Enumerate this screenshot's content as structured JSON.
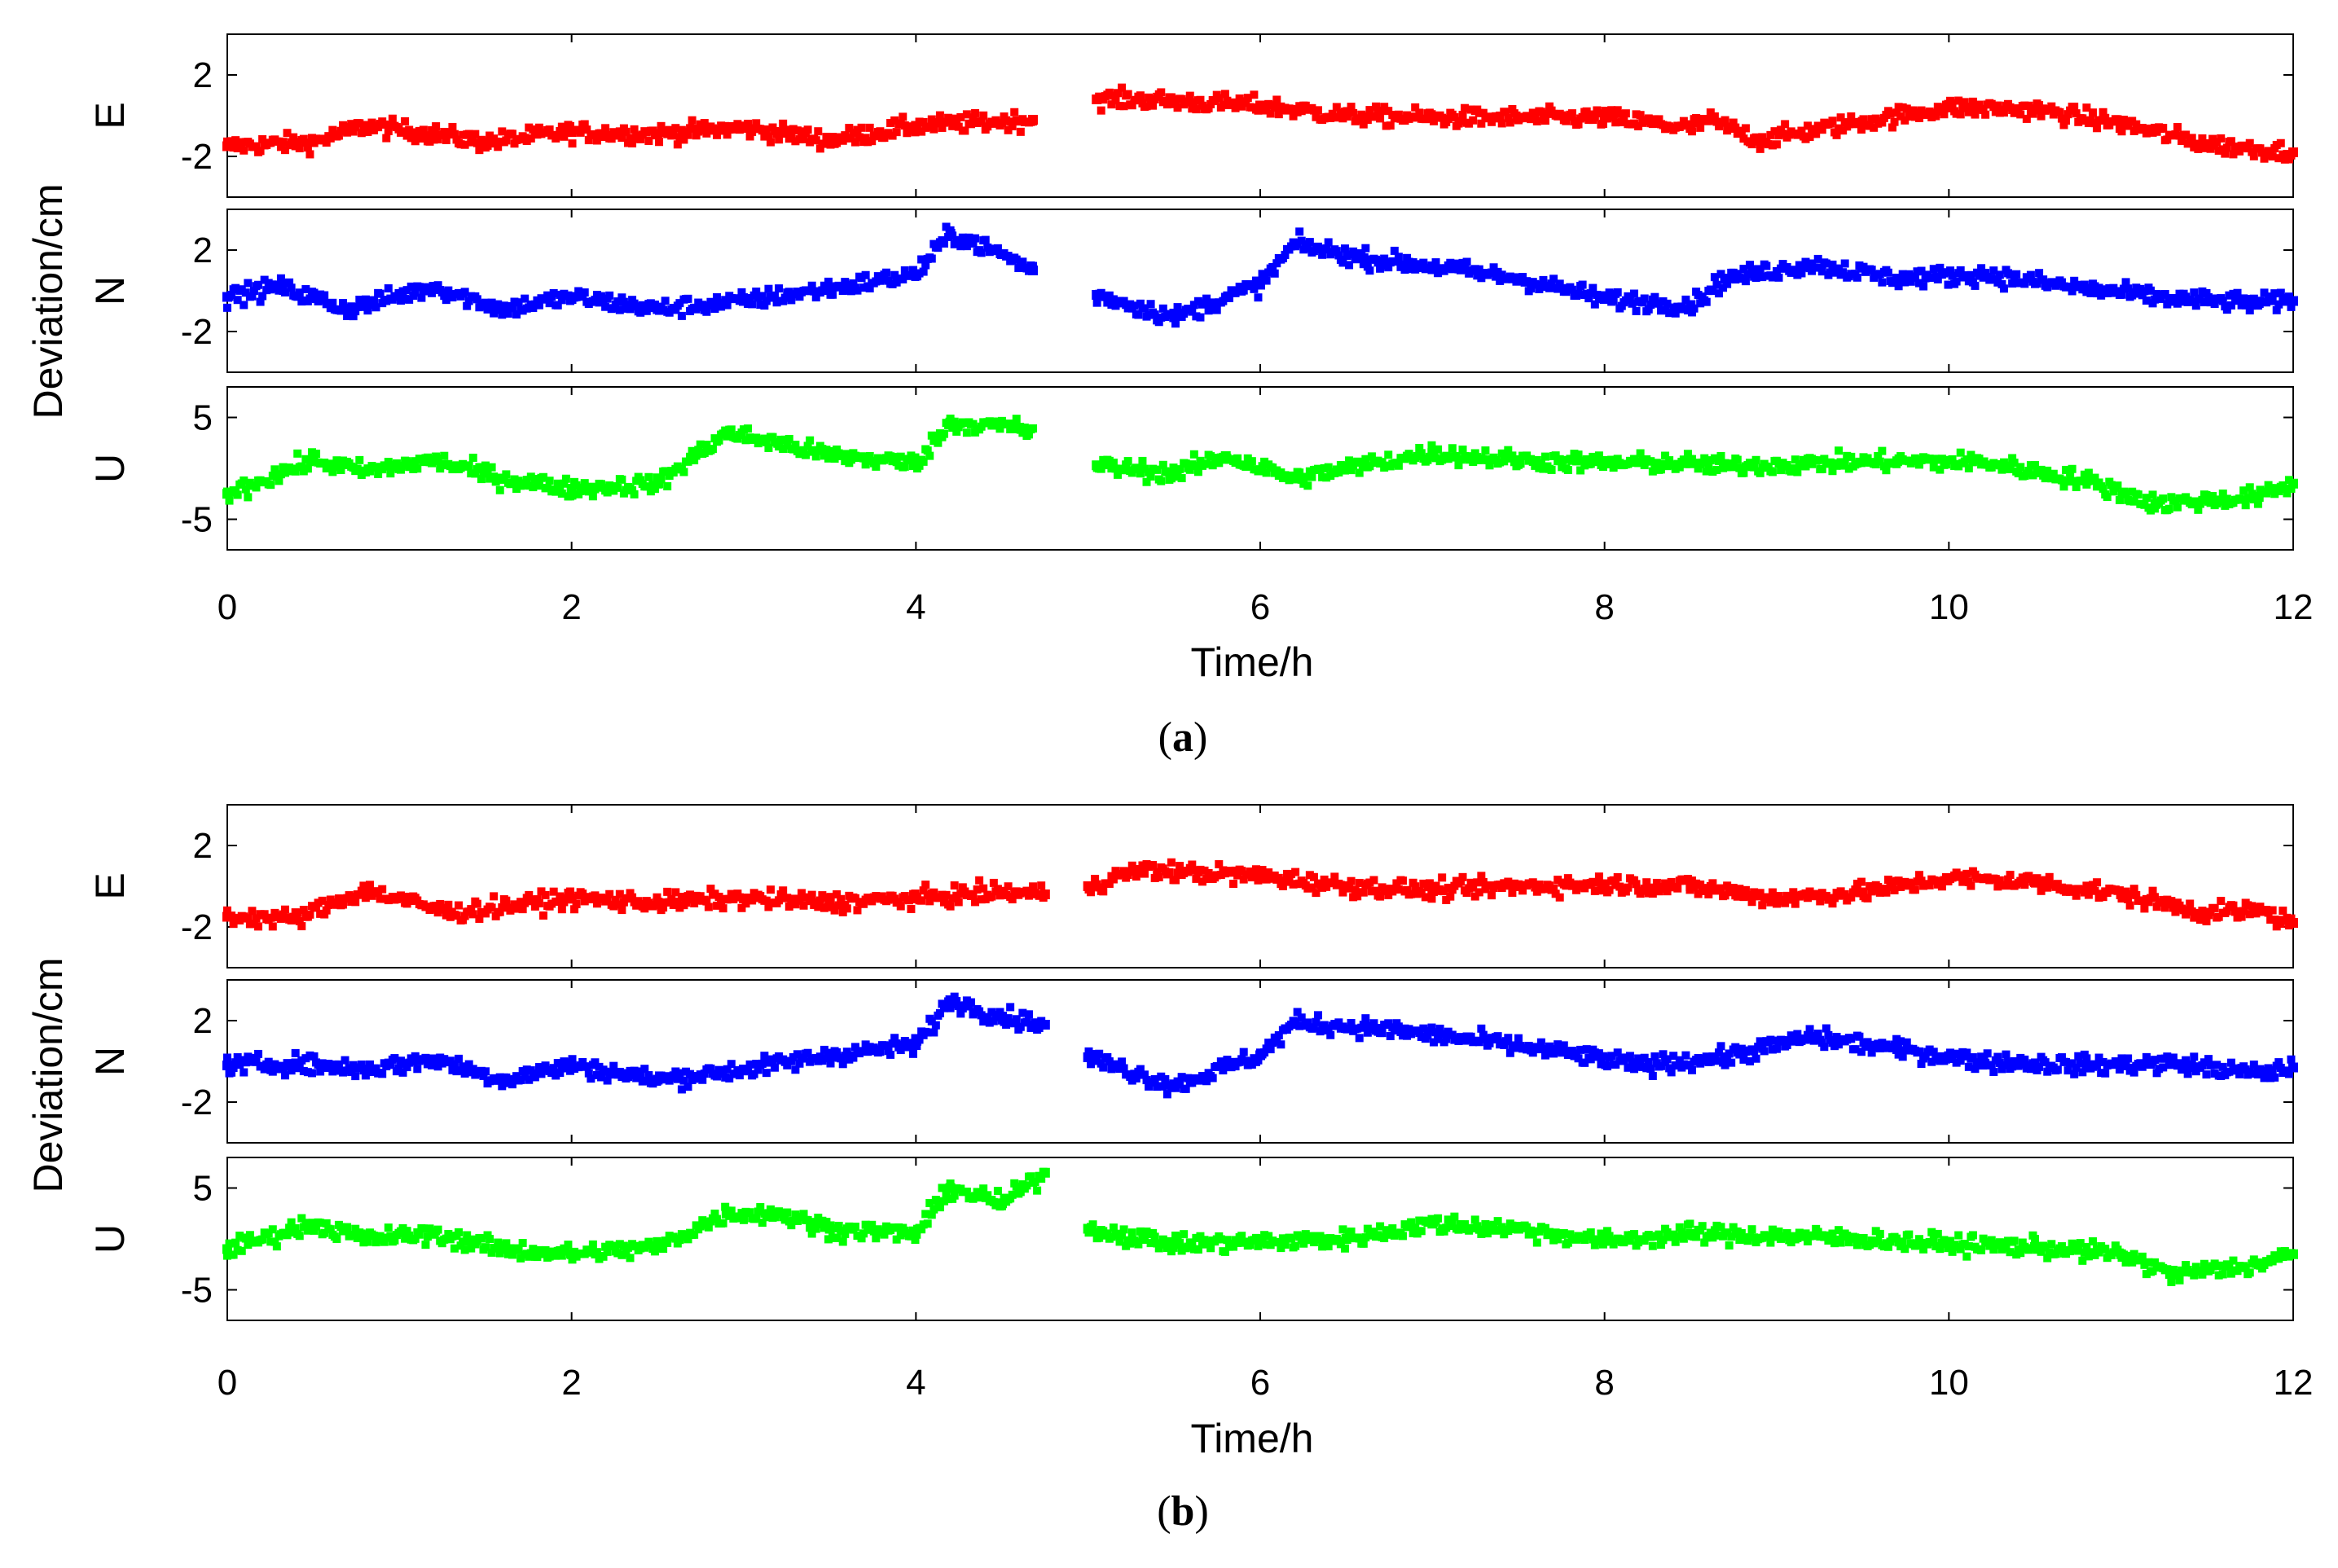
{
  "figure": {
    "ylabel": "Deviation/cm",
    "xlabel": "Time/h",
    "x_ticks": [
      "0",
      "2",
      "4",
      "6",
      "8",
      "10",
      "12"
    ],
    "captions": [
      {
        "open": "(",
        "letter": "a",
        "close": ")"
      },
      {
        "open": "(",
        "letter": "b",
        "close": ")"
      }
    ]
  },
  "chart_data": [
    {
      "type": "scatter",
      "panel": "a",
      "title": "",
      "xlabel": "Time/h",
      "ylabel": "Deviation/cm",
      "xlim": [
        0,
        12
      ],
      "gaps": [
        [
          4.68,
          5.05
        ]
      ],
      "subplots": [
        {
          "name": "E",
          "ylim": [
            -4,
            4
          ],
          "yticks": [
            2,
            -2
          ],
          "ytick_labels": [
            "2",
            "-2"
          ],
          "color": "#ff0000",
          "x": [
            0,
            0.5,
            0.8,
            1.2,
            1.5,
            2,
            2.5,
            3,
            3.5,
            4,
            4.68,
            5.05,
            5.3,
            6,
            6.5,
            7,
            7.5,
            8,
            8.5,
            8.6,
            8.9,
            9.5,
            10,
            10.5,
            11,
            11.5,
            12
          ],
          "y": [
            -1.5,
            -1.3,
            -0.5,
            -0.9,
            -1.3,
            -0.8,
            -0.9,
            -0.6,
            -1.2,
            -0.5,
            -0.2,
            0.8,
            0.8,
            0.5,
            0.0,
            -0.1,
            -0.1,
            -0.1,
            -0.6,
            -0.2,
            -1.2,
            -0.3,
            0.4,
            0.3,
            -0.4,
            -1.4,
            -1.8
          ]
        },
        {
          "name": "N",
          "ylim": [
            -4,
            4
          ],
          "yticks": [
            2,
            -2
          ],
          "ytick_labels": [
            "2",
            "-2"
          ],
          "color": "#0000ff",
          "x": [
            0,
            0.3,
            0.7,
            1.2,
            1.6,
            2,
            2.5,
            3,
            3.5,
            4,
            4.2,
            4.5,
            4.68,
            5.05,
            5.5,
            6,
            6.2,
            6.6,
            7,
            7.5,
            8,
            8.5,
            8.7,
            9.2,
            9.7,
            10.2,
            10.8,
            11.3,
            11.8,
            12
          ],
          "y": [
            -0.3,
            0.2,
            -0.9,
            0.2,
            -0.9,
            -0.3,
            -0.9,
            -0.5,
            0.1,
            0.8,
            2.8,
            1.8,
            1.0,
            -0.2,
            -1.3,
            0.3,
            2.3,
            1.6,
            1.2,
            0.6,
            -0.4,
            -0.7,
            0.6,
            1.3,
            0.6,
            0.8,
            0.1,
            -0.4,
            -0.6,
            -0.5
          ]
        },
        {
          "name": "U",
          "ylim": [
            -8,
            8
          ],
          "yticks": [
            5,
            -5
          ],
          "ytick_labels": [
            "5",
            "-5"
          ],
          "color": "#00ff00",
          "x": [
            0,
            0.5,
            0.8,
            1.2,
            1.6,
            2,
            2.5,
            2.9,
            3.2,
            3.5,
            4,
            4.2,
            4.6,
            5.05,
            5.5,
            5.8,
            6.2,
            6.6,
            7,
            7.5,
            8,
            8.5,
            8.7,
            9.2,
            9.7,
            10.2,
            10.8,
            11.2,
            11.8,
            12
          ],
          "y": [
            -2.5,
            0.8,
            -0.3,
            0.8,
            -1.0,
            -2.0,
            -1.5,
            3.5,
            2.5,
            1.3,
            0.5,
            4.5,
            4.0,
            0.3,
            -0.5,
            1.2,
            -1.0,
            0.3,
            1.5,
            0.8,
            0.5,
            0.5,
            0.2,
            0.5,
            0.7,
            0.6,
            -1.2,
            -3.5,
            -2.8,
            -1.5
          ]
        }
      ]
    },
    {
      "type": "scatter",
      "panel": "b",
      "title": "",
      "xlabel": "Time/h",
      "ylabel": "Deviation/cm",
      "xlim": [
        0,
        12
      ],
      "gaps": [
        [
          4.75,
          5.0
        ]
      ],
      "subplots": [
        {
          "name": "E",
          "ylim": [
            -4,
            4
          ],
          "yticks": [
            2,
            -2
          ],
          "ytick_labels": [
            "2",
            "-2"
          ],
          "color": "#ff0000",
          "x": [
            0,
            0.4,
            0.8,
            1.3,
            2,
            2.5,
            3,
            3.5,
            4,
            4.5,
            4.75,
            5.0,
            5.3,
            6,
            6.5,
            7,
            7.5,
            8,
            8.5,
            9,
            9.5,
            10,
            10.5,
            11,
            11.5,
            11.8,
            12
          ],
          "y": [
            -1.5,
            -1.6,
            -0.2,
            -1.3,
            -0.6,
            -0.8,
            -0.6,
            -0.8,
            -0.6,
            -0.3,
            -0.4,
            0.0,
            0.8,
            0.5,
            0.0,
            -0.2,
            0.0,
            0.1,
            0.0,
            -0.6,
            -0.3,
            0.4,
            0.2,
            -0.4,
            -1.3,
            -1.2,
            -1.8
          ]
        },
        {
          "name": "N",
          "ylim": [
            -4,
            4
          ],
          "yticks": [
            2,
            -2
          ],
          "ytick_labels": [
            "2",
            "-2"
          ],
          "color": "#0000ff",
          "x": [
            0,
            0.4,
            0.8,
            1.2,
            1.6,
            2,
            2.5,
            3,
            3.5,
            4,
            4.2,
            4.5,
            4.75,
            5.0,
            5.5,
            6,
            6.2,
            6.7,
            7.2,
            7.7,
            8.2,
            8.7,
            9.2,
            9.7,
            10.2,
            10.8,
            11.3,
            11.8,
            12
          ],
          "y": [
            -0.2,
            -0.1,
            -0.4,
            0.1,
            -0.9,
            -0.2,
            -0.9,
            -0.4,
            0.3,
            0.8,
            3.0,
            2.2,
            1.8,
            0.2,
            -1.2,
            0.3,
            1.9,
            1.6,
            1.1,
            0.5,
            -0.2,
            0.2,
            1.2,
            0.6,
            0.0,
            -0.2,
            -0.1,
            -0.6,
            -0.3
          ]
        },
        {
          "name": "U",
          "ylim": [
            -8,
            8
          ],
          "yticks": [
            5,
            -5
          ],
          "ytick_labels": [
            "5",
            "-5"
          ],
          "color": "#00ff00",
          "x": [
            0,
            0.5,
            0.8,
            1.2,
            1.6,
            2,
            2.5,
            2.9,
            3.2,
            3.5,
            4,
            4.2,
            4.5,
            4.75,
            5.0,
            5.5,
            6,
            6.5,
            7,
            7.5,
            8,
            8.5,
            9,
            9.5,
            10,
            10.5,
            11,
            11.3,
            11.8,
            12
          ],
          "y": [
            -1.0,
            1.5,
            0.0,
            0.5,
            -1.0,
            -1.5,
            -0.8,
            2.5,
            2.5,
            1.0,
            0.5,
            5.0,
            3.5,
            6.5,
            1.0,
            -0.5,
            -0.3,
            0.0,
            1.5,
            1.0,
            -0.2,
            0.5,
            0.3,
            0.0,
            -0.5,
            -0.8,
            -1.5,
            -3.5,
            -2.5,
            -1.5
          ]
        }
      ]
    }
  ]
}
